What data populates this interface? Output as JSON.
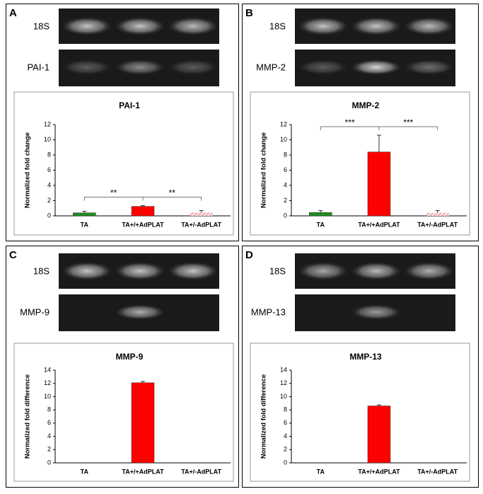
{
  "panels": [
    {
      "label": "A",
      "gels": [
        "18S",
        "PAI-1"
      ]
    },
    {
      "label": "B",
      "gels": [
        "18S",
        "MMP-2"
      ]
    },
    {
      "label": "C",
      "gels": [
        "18S",
        "MMP-9"
      ]
    },
    {
      "label": "D",
      "gels": [
        "18S",
        "MMP-13"
      ]
    }
  ],
  "chart_data": [
    {
      "type": "bar",
      "title": "PAI-1",
      "y_label": "Normalized fold change",
      "categories": [
        "TA",
        "TA+/+AdPLAT",
        "TA+/-AdPLAT"
      ],
      "values": [
        0.4,
        1.25,
        0.45
      ],
      "errors": [
        0.2,
        0.1,
        0.25
      ],
      "colors": [
        "#1e8c1e",
        "#ff0000",
        "#f0b0b0"
      ],
      "hatch": [
        false,
        false,
        true
      ],
      "ylim": [
        0,
        12
      ],
      "yticks": [
        0,
        2,
        4,
        6,
        8,
        10,
        12
      ],
      "significance": [
        {
          "between": [
            "TA",
            "TA+/+AdPLAT"
          ],
          "label": "**"
        },
        {
          "between": [
            "TA+/+AdPLAT",
            "TA+/-AdPLAT"
          ],
          "label": "**"
        }
      ]
    },
    {
      "type": "bar",
      "title": "MMP-2",
      "y_label": "Normalized fold change",
      "categories": [
        "TA",
        "TA+/+AdPLAT",
        "TA+/-AdPLAT"
      ],
      "values": [
        0.45,
        8.4,
        0.4
      ],
      "errors": [
        0.25,
        2.2,
        0.3
      ],
      "colors": [
        "#1e8c1e",
        "#ff0000",
        "#f0b0b0"
      ],
      "hatch": [
        false,
        false,
        true
      ],
      "ylim": [
        0,
        12
      ],
      "yticks": [
        0,
        2,
        4,
        6,
        8,
        10,
        12
      ],
      "significance": [
        {
          "between": [
            "TA",
            "TA+/+AdPLAT"
          ],
          "label": "***"
        },
        {
          "between": [
            "TA+/+AdPLAT",
            "TA+/-AdPLAT"
          ],
          "label": "***"
        }
      ]
    },
    {
      "type": "bar",
      "title": "MMP-9",
      "y_label": "Normalized fold difference",
      "categories": [
        "TA",
        "TA+/+AdPLAT",
        "TA+/-AdPLAT"
      ],
      "values": [
        0,
        12.1,
        0
      ],
      "errors": [
        0,
        0.2,
        0
      ],
      "colors": [
        "#1e8c1e",
        "#ff0000",
        "#f0b0b0"
      ],
      "hatch": [
        false,
        false,
        false
      ],
      "ylim": [
        0,
        14
      ],
      "yticks": [
        0,
        2,
        4,
        6,
        8,
        10,
        12,
        14
      ],
      "significance": []
    },
    {
      "type": "bar",
      "title": "MMP-13",
      "y_label": "Normalized fold difference",
      "categories": [
        "TA",
        "TA+/+AdPLAT",
        "TA+/-AdPLAT"
      ],
      "values": [
        0,
        8.6,
        0
      ],
      "errors": [
        0,
        0.15,
        0
      ],
      "colors": [
        "#1e8c1e",
        "#ff0000",
        "#f0b0b0"
      ],
      "hatch": [
        false,
        false,
        false
      ],
      "ylim": [
        0,
        14
      ],
      "yticks": [
        0,
        2,
        4,
        6,
        8,
        10,
        12,
        14
      ],
      "significance": []
    }
  ]
}
